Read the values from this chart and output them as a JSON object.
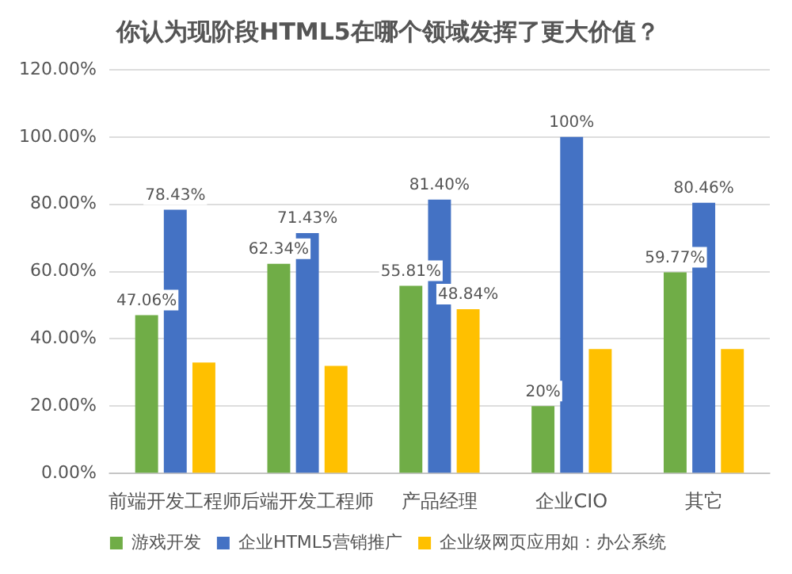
{
  "chart_data": {
    "type": "bar",
    "title": "你认为现阶段HTML5在哪个领域发挥了更大价值？",
    "categories": [
      "前端开发工程师",
      "后端开发工程师",
      "产品经理",
      "企业CIO",
      "其它"
    ],
    "series": [
      {
        "name": "游戏开发",
        "color": "#70ad47",
        "values": [
          47.06,
          62.34,
          55.81,
          20,
          59.77
        ],
        "value_labels": [
          "47.06%",
          "62.34%",
          "55.81%",
          "20%",
          "59.77%"
        ]
      },
      {
        "name": "企业HTML5营销推广",
        "color": "#4472c4",
        "values": [
          78.43,
          71.43,
          81.4,
          100,
          80.46
        ],
        "value_labels": [
          "78.43%",
          "71.43%",
          "81.40%",
          "100%",
          "80.46%"
        ]
      },
      {
        "name": "企业级网页应用如：办公系统",
        "color": "#ffc000",
        "values": [
          33,
          32,
          48.84,
          37,
          37
        ],
        "value_labels": [
          null,
          null,
          "48.84%",
          null,
          null
        ]
      }
    ],
    "ylim": [
      0,
      120
    ],
    "yticks": [
      {
        "value": 0,
        "label": "0.00%"
      },
      {
        "value": 20,
        "label": "20.00%"
      },
      {
        "value": 40,
        "label": "40.00%"
      },
      {
        "value": 60,
        "label": "60.00%"
      },
      {
        "value": 80,
        "label": "80.00%"
      },
      {
        "value": 100,
        "label": "100.00%"
      },
      {
        "value": 120,
        "label": "120.00%"
      }
    ],
    "grid": "y",
    "legend": "bottom"
  }
}
